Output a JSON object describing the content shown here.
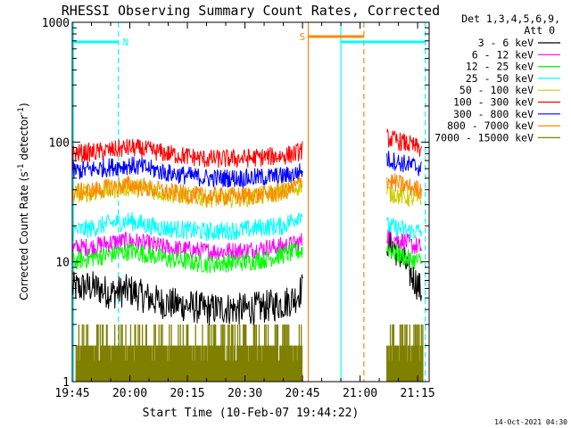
{
  "chart_data": {
    "type": "line",
    "title": "RHESSI Observing Summary Count Rates, Corrected",
    "xlabel": "Start Time (10-Feb-07 19:44:22)",
    "ylabel": "Corrected Count Rate (s⁻¹ detector⁻¹)",
    "x_ticks": [
      "19:45",
      "20:00",
      "20:15",
      "20:30",
      "20:45",
      "21:00",
      "21:15"
    ],
    "x_tick_minutes": [
      45,
      60,
      75,
      90,
      105,
      120,
      135
    ],
    "xlim_minutes": [
      45,
      138
    ],
    "y_scale": "log",
    "ylim": [
      1,
      1000
    ],
    "y_ticks": [
      "1",
      "10",
      "100",
      "1000"
    ],
    "y_tick_values": [
      1,
      10,
      100,
      1000
    ],
    "legend_position": "right",
    "legend_header": [
      "Det 1,3,4,5,6,9,",
      "Att 0"
    ],
    "series": [
      {
        "name": "3 - 6 keV",
        "color": "#000000",
        "segments": [
          [
            [
              45,
              6
            ],
            [
              50,
              6.2
            ],
            [
              55,
              5.5
            ],
            [
              60,
              5.8
            ],
            [
              63,
              5.2
            ],
            [
              68,
              4.6
            ],
            [
              75,
              4.3
            ],
            [
              80,
              4.0
            ],
            [
              85,
              4.1
            ],
            [
              90,
              4.0
            ],
            [
              95,
              4.2
            ],
            [
              100,
              4.5
            ],
            [
              103,
              5.0
            ],
            [
              105,
              6
            ]
          ],
          [
            [
              127,
              15
            ],
            [
              130,
              12
            ],
            [
              133,
              8
            ],
            [
              135,
              6.5
            ],
            [
              136,
              5.5
            ]
          ]
        ]
      },
      {
        "name": "6 - 12 keV",
        "color": "#ff00ff",
        "segments": [
          [
            [
              45,
              13
            ],
            [
              50,
              13.3
            ],
            [
              55,
              14.5
            ],
            [
              60,
              15
            ],
            [
              65,
              14
            ],
            [
              70,
              13
            ],
            [
              80,
              12.2
            ],
            [
              90,
              12.4
            ],
            [
              95,
              13
            ],
            [
              100,
              13.5
            ],
            [
              103,
              14
            ],
            [
              105,
              15
            ]
          ],
          [
            [
              127,
              17
            ],
            [
              130,
              15.5
            ],
            [
              133,
              14
            ],
            [
              136,
              13
            ]
          ]
        ]
      },
      {
        "name": "12 - 25 keV",
        "color": "#00ff00",
        "segments": [
          [
            [
              45,
              10
            ],
            [
              50,
              10.8
            ],
            [
              55,
              11.5
            ],
            [
              60,
              12.3
            ],
            [
              65,
              11.5
            ],
            [
              70,
              10.5
            ],
            [
              80,
              9.6
            ],
            [
              90,
              10
            ],
            [
              95,
              10.5
            ],
            [
              100,
              11.5
            ],
            [
              103,
              12
            ],
            [
              105,
              12.5
            ]
          ],
          [
            [
              127,
              13
            ],
            [
              130,
              11.5
            ],
            [
              133,
              10.5
            ],
            [
              136,
              10
            ]
          ]
        ]
      },
      {
        "name": "25 - 50 keV",
        "color": "#00ffff",
        "segments": [
          [
            [
              45,
              18
            ],
            [
              50,
              19
            ],
            [
              55,
              21
            ],
            [
              60,
              22
            ],
            [
              65,
              20
            ],
            [
              70,
              19
            ],
            [
              80,
              17.8
            ],
            [
              90,
              18.5
            ],
            [
              95,
              19.5
            ],
            [
              100,
              20
            ],
            [
              103,
              23
            ],
            [
              105,
              26
            ]
          ],
          [
            [
              127,
              20
            ],
            [
              130,
              19
            ],
            [
              133,
              18
            ],
            [
              136,
              18
            ]
          ]
        ]
      },
      {
        "name": "50 - 100 keV",
        "color": "#cccc00",
        "segments": [
          [
            [
              45,
              37
            ],
            [
              50,
              38
            ],
            [
              55,
              40
            ],
            [
              60,
              42
            ],
            [
              65,
              40
            ],
            [
              70,
              37
            ],
            [
              80,
              34
            ],
            [
              90,
              34.5
            ],
            [
              95,
              36
            ],
            [
              100,
              38
            ],
            [
              103,
              41
            ],
            [
              105,
              45
            ]
          ],
          [
            [
              127,
              38
            ],
            [
              130,
              36
            ],
            [
              133,
              34
            ],
            [
              136,
              33
            ]
          ]
        ]
      },
      {
        "name": "100 - 300 keV",
        "color": "#ff0000",
        "segments": [
          [
            [
              45,
              80
            ],
            [
              50,
              82
            ],
            [
              55,
              85
            ],
            [
              60,
              90
            ],
            [
              65,
              85
            ],
            [
              70,
              80
            ],
            [
              80,
              72
            ],
            [
              90,
              73
            ],
            [
              95,
              75
            ],
            [
              100,
              77
            ],
            [
              103,
              80
            ],
            [
              105,
              86
            ]
          ],
          [
            [
              127,
              108
            ],
            [
              130,
              102
            ],
            [
              133,
              95
            ],
            [
              136,
              87
            ]
          ]
        ]
      },
      {
        "name": "300 - 800 keV",
        "color": "#0000ff",
        "segments": [
          [
            [
              45,
              57
            ],
            [
              50,
              59
            ],
            [
              55,
              62
            ],
            [
              60,
              64
            ],
            [
              65,
              60
            ],
            [
              70,
              55
            ],
            [
              80,
              50
            ],
            [
              90,
              50
            ],
            [
              95,
              51
            ],
            [
              100,
              52
            ],
            [
              103,
              54
            ],
            [
              105,
              58
            ]
          ],
          [
            [
              127,
              72
            ],
            [
              130,
              68
            ],
            [
              133,
              64
            ],
            [
              136,
              61
            ]
          ]
        ]
      },
      {
        "name": "800 - 7000 keV",
        "color": "#ff8800",
        "segments": [
          [
            [
              45,
              38
            ],
            [
              50,
              39
            ],
            [
              55,
              42
            ],
            [
              60,
              44
            ],
            [
              65,
              41
            ],
            [
              70,
              38
            ],
            [
              80,
              35
            ],
            [
              90,
              35.5
            ],
            [
              95,
              36.5
            ],
            [
              100,
              38.5
            ],
            [
              103,
              42
            ],
            [
              105,
              48
            ]
          ],
          [
            [
              127,
              48
            ],
            [
              130,
              45
            ],
            [
              133,
              42
            ],
            [
              136,
              40
            ]
          ]
        ]
      },
      {
        "name": "7000 - 15000 keV",
        "color": "#808000",
        "segments": []
      }
    ],
    "annotations": [
      {
        "label": "N",
        "color": "#00ffff",
        "x_minutes": 45.3,
        "x_end_minutes": 57
      },
      {
        "label": "S",
        "color": "#ff8800",
        "x_minutes": 106.5,
        "x_end_minutes": 121
      }
    ]
  },
  "footer": {
    "datestamp": "14-Oct-2021 04:30"
  }
}
